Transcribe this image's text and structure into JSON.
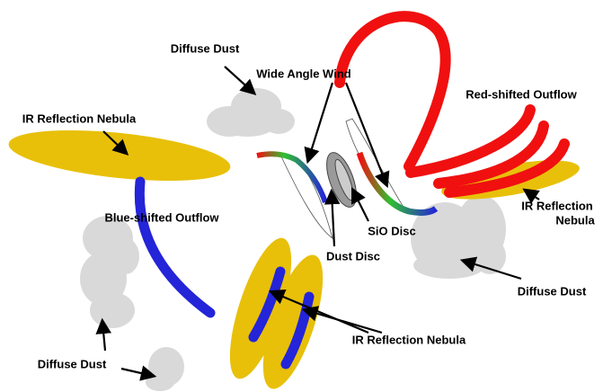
{
  "labels": [
    {
      "text": "Diffuse Dust"
    },
    {
      "text": "Wide Angle Wind"
    },
    {
      "text": "Red-shifted Outflow"
    },
    {
      "text": "IR Reflection Nebula"
    },
    {
      "lines": [
        "IR Reflection",
        "Nebula"
      ]
    },
    {
      "text": "Blue-shifted Outflow"
    },
    {
      "text": "SiO Disc"
    },
    {
      "text": "Dust Disc"
    },
    {
      "text": "Diffuse Dust"
    },
    {
      "text": "IR Reflection Nebula"
    },
    {
      "text": "Diffuse Dust"
    }
  ]
}
